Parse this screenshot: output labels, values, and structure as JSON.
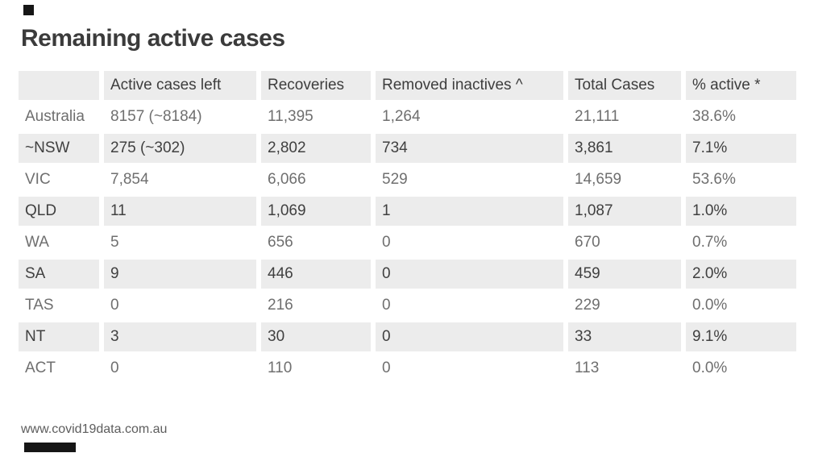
{
  "title": "Remaining active cases",
  "footer": {
    "url": "www.covid19data.com.au"
  },
  "colors": {
    "band_gray": "#ececec",
    "header_text": "#3d3d3d",
    "plain_row_text": "#6f6f6f",
    "striped_row_text": "#404040",
    "title_text": "#3b3b3b",
    "marker_black": "#161616"
  },
  "table": {
    "columns": [
      "",
      "Active cases left",
      "Recoveries",
      "Removed inactives ^",
      "Total Cases",
      "% active *"
    ],
    "rows": [
      {
        "label": "Australia",
        "active": "8157 (~8184)",
        "recoveries": "11,395",
        "removed": "1,264",
        "total": "21,111",
        "pct": "38.6%"
      },
      {
        "label": "~NSW",
        "active": "275 (~302)",
        "recoveries": "2,802",
        "removed": "734",
        "total": "3,861",
        "pct": "7.1%"
      },
      {
        "label": "VIC",
        "active": "7,854",
        "recoveries": "6,066",
        "removed": "529",
        "total": "14,659",
        "pct": "53.6%"
      },
      {
        "label": "QLD",
        "active": "11",
        "recoveries": "1,069",
        "removed": "1",
        "total": "1,087",
        "pct": "1.0%"
      },
      {
        "label": "WA",
        "active": "5",
        "recoveries": "656",
        "removed": "0",
        "total": "670",
        "pct": "0.7%"
      },
      {
        "label": "SA",
        "active": "9",
        "recoveries": "446",
        "removed": "0",
        "total": "459",
        "pct": "2.0%"
      },
      {
        "label": "TAS",
        "active": "0",
        "recoveries": "216",
        "removed": "0",
        "total": "229",
        "pct": "0.0%"
      },
      {
        "label": "NT",
        "active": "3",
        "recoveries": "30",
        "removed": "0",
        "total": "33",
        "pct": "9.1%"
      },
      {
        "label": "ACT",
        "active": "0",
        "recoveries": "110",
        "removed": "0",
        "total": "113",
        "pct": "0.0%"
      }
    ]
  }
}
